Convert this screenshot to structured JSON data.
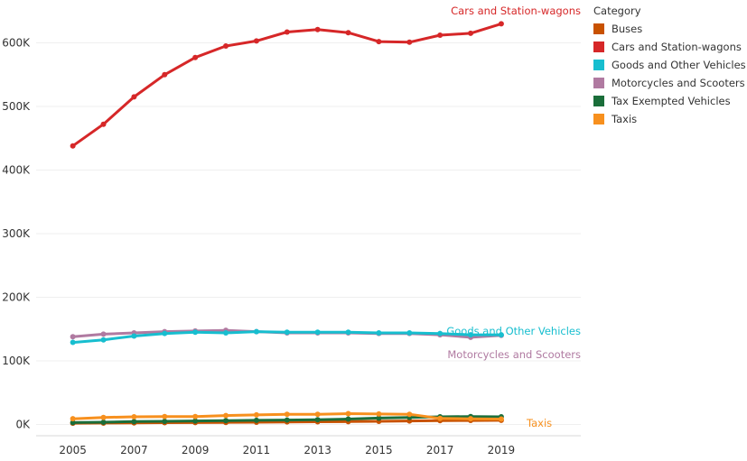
{
  "chart_data": {
    "type": "line",
    "title": "",
    "xlabel": "",
    "ylabel": "",
    "x": [
      2005,
      2006,
      2007,
      2008,
      2009,
      2010,
      2011,
      2012,
      2013,
      2014,
      2015,
      2016,
      2017,
      2018,
      2019
    ],
    "x_ticks": [
      2005,
      2007,
      2009,
      2011,
      2013,
      2015,
      2017,
      2019
    ],
    "xlim": [
      2003.8,
      2021.6
    ],
    "ylim": [
      0,
      650000
    ],
    "y_ticks": [
      {
        "value": 0,
        "label": "0K"
      },
      {
        "value": 100000,
        "label": "100K"
      },
      {
        "value": 200000,
        "label": "200K"
      },
      {
        "value": 300000,
        "label": "300K"
      },
      {
        "value": 400000,
        "label": "400K"
      },
      {
        "value": 500000,
        "label": "500K"
      },
      {
        "value": 600000,
        "label": "600K"
      }
    ],
    "grid": true,
    "legend": {
      "title": "Category",
      "placement": "right"
    },
    "series": [
      {
        "name": "Buses",
        "color": "#c85200",
        "label": "",
        "values": [
          2000,
          2200,
          2500,
          2800,
          3000,
          3200,
          3600,
          4000,
          4300,
          4500,
          5000,
          5500,
          6000,
          6300,
          6500
        ]
      },
      {
        "name": "Cars and Station-wagons",
        "color": "#d62728",
        "label": "Cars and Station-wagons",
        "values": [
          438000,
          472000,
          515000,
          550000,
          577000,
          595000,
          603000,
          617000,
          621000,
          616000,
          602000,
          601000,
          612000,
          615000,
          630000
        ]
      },
      {
        "name": "Goods and Other Vehicles",
        "color": "#17becf",
        "label": "Goods and Other Vehicles",
        "values": [
          129000,
          133000,
          139000,
          143000,
          145000,
          144000,
          146000,
          145000,
          145000,
          145000,
          144000,
          144000,
          143000,
          141000,
          141000
        ]
      },
      {
        "name": "Motorcycles and Scooters",
        "color": "#b07aa1",
        "label": "Motorcycles and Scooters",
        "values": [
          138000,
          142000,
          144000,
          146000,
          147000,
          148000,
          146000,
          144000,
          144000,
          144000,
          143000,
          143000,
          141000,
          137000,
          140000
        ]
      },
      {
        "name": "Tax Exempted Vehicles",
        "color": "#1a6e3a",
        "label": "",
        "values": [
          3000,
          3500,
          4500,
          5000,
          5500,
          6000,
          6500,
          7000,
          7500,
          8500,
          10000,
          11000,
          12000,
          12500,
          12000
        ]
      },
      {
        "name": "Taxis",
        "color": "#f7901e",
        "label": "Taxis",
        "values": [
          9000,
          11000,
          12000,
          12500,
          12500,
          14000,
          15000,
          16000,
          16000,
          17000,
          16500,
          16000,
          9500,
          9000,
          8500
        ]
      }
    ]
  }
}
